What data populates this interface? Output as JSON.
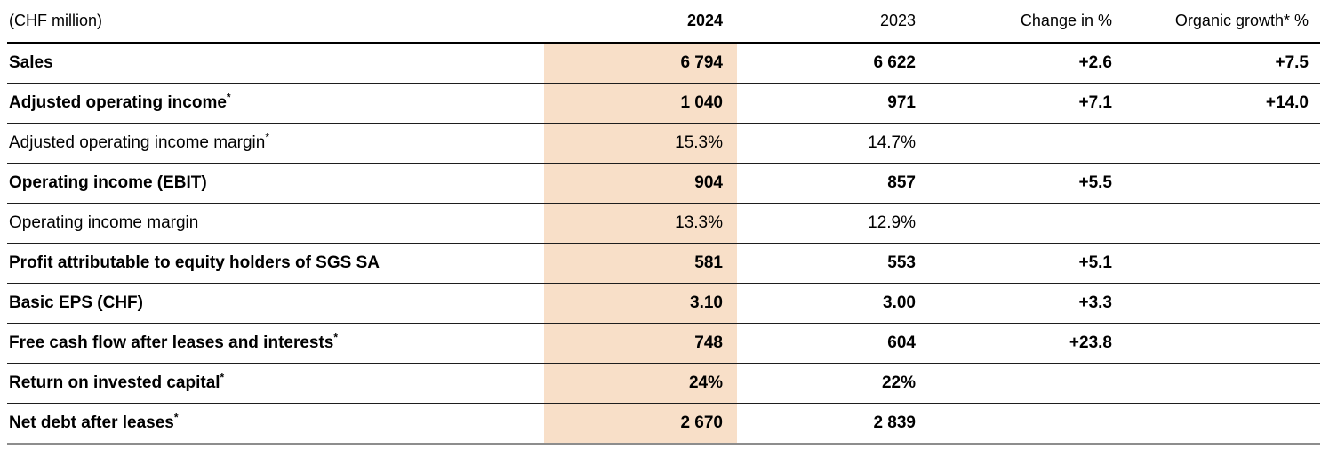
{
  "table": {
    "unit_label": "(CHF million)",
    "highlight_color": "#f8dfc8",
    "columns": {
      "y2024": "2024",
      "y2023": "2023",
      "change": "Change in %",
      "organic": "Organic growth* %"
    },
    "rows": [
      {
        "label": "Sales",
        "sup": "",
        "bold": true,
        "v2024": "6 794",
        "v2023": "6 622",
        "change": "+2.6",
        "organic": "+7.5"
      },
      {
        "label": "Adjusted operating income",
        "sup": "*",
        "bold": true,
        "v2024": "1 040",
        "v2023": "971",
        "change": "+7.1",
        "organic": "+14.0"
      },
      {
        "label": "Adjusted operating income margin",
        "sup": "*",
        "bold": false,
        "v2024": "15.3%",
        "v2023": "14.7%",
        "change": "",
        "organic": ""
      },
      {
        "label": "Operating income (EBIT)",
        "sup": "",
        "bold": true,
        "v2024": "904",
        "v2023": "857",
        "change": "+5.5",
        "organic": ""
      },
      {
        "label": "Operating income margin",
        "sup": "",
        "bold": false,
        "v2024": "13.3%",
        "v2023": "12.9%",
        "change": "",
        "organic": ""
      },
      {
        "label": "Profit attributable to equity holders of SGS SA",
        "sup": "",
        "bold": true,
        "v2024": "581",
        "v2023": "553",
        "change": "+5.1",
        "organic": ""
      },
      {
        "label": "Basic EPS (CHF)",
        "sup": "",
        "bold": true,
        "v2024": "3.10",
        "v2023": "3.00",
        "change": "+3.3",
        "organic": ""
      },
      {
        "label": "Free cash flow after leases and interests",
        "sup": "*",
        "bold": true,
        "v2024": "748",
        "v2023": "604",
        "change": "+23.8",
        "organic": ""
      },
      {
        "label": "Return on invested capital",
        "sup": "*",
        "bold": true,
        "v2024": "24%",
        "v2023": "22%",
        "change": "",
        "organic": ""
      },
      {
        "label": "Net debt after leases",
        "sup": "*",
        "bold": true,
        "v2024": "2 670",
        "v2023": "2 839",
        "change": "",
        "organic": ""
      }
    ]
  }
}
